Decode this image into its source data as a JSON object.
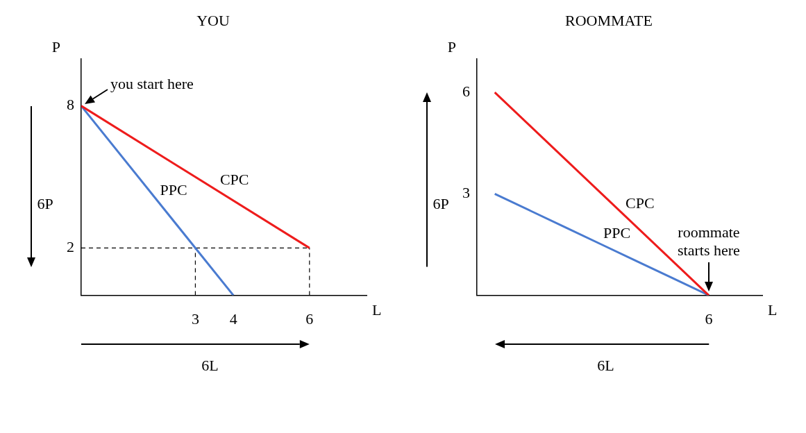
{
  "chart_data": [
    {
      "type": "line",
      "title": "YOU",
      "xlabel": "L",
      "ylabel": "P",
      "xlim": [
        0,
        7.5
      ],
      "ylim": [
        0,
        10
      ],
      "xticks": [
        3,
        4,
        6
      ],
      "yticks": [
        2,
        8
      ],
      "grid": false,
      "legend": false,
      "marker": "none",
      "series": [
        {
          "name": "CPC",
          "color": "#ee1c1c",
          "x": [
            0,
            6
          ],
          "values": [
            8,
            2
          ]
        },
        {
          "name": "PPC",
          "color": "#4a7bd0",
          "x": [
            0,
            4
          ],
          "values": [
            8,
            0
          ]
        },
        {
          "color": "#000000",
          "line_style": "dashed",
          "x": [
            0,
            6
          ],
          "values": [
            2,
            2
          ]
        },
        {
          "color": "#000000",
          "line_style": "dashed",
          "x": [
            3,
            3
          ],
          "values": [
            0,
            2
          ]
        },
        {
          "color": "#000000",
          "line_style": "dashed",
          "x": [
            6,
            6
          ],
          "values": [
            0,
            2
          ]
        }
      ],
      "annotations": [
        "6P",
        "6L",
        {
          "text": "you start here",
          "x": 0,
          "y": 8
        }
      ]
    },
    {
      "type": "line",
      "title": "ROOMMATE",
      "xlabel": "L",
      "ylabel": "P",
      "categories": [
        null,
        null,
        null,
        null,
        null,
        null,
        "6",
        null
      ],
      "ylim": [
        0,
        7
      ],
      "yticks": [
        3,
        6
      ],
      "grid": false,
      "legend": false,
      "marker": "none",
      "series": [
        {
          "name": "CPC",
          "color": "#ee1c1c",
          "values": [
            6,
            5,
            4,
            3,
            2,
            1,
            0,
            null
          ]
        },
        {
          "name": "PPC",
          "color": "#4a7bd0",
          "values": [
            3,
            2.5,
            2,
            1.5,
            1,
            0.5,
            0,
            null
          ]
        }
      ],
      "annotations": [
        "6P",
        "6L",
        {
          "text": "roommate starts here",
          "x": "6",
          "y": 0
        }
      ]
    }
  ]
}
